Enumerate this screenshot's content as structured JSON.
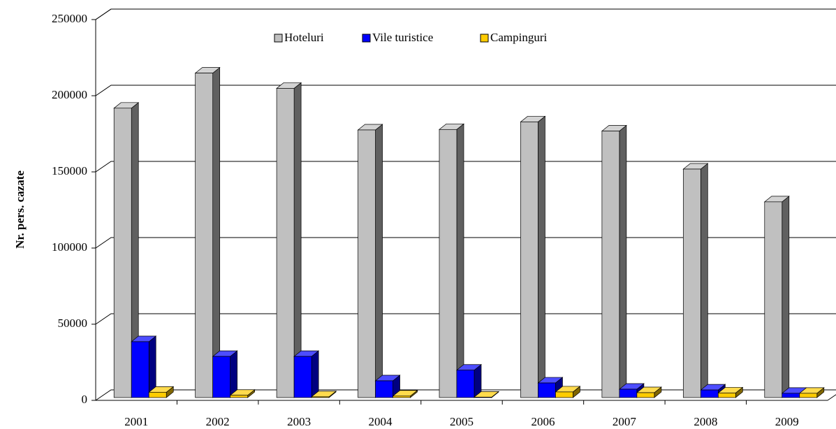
{
  "chart_data": {
    "type": "bar3d",
    "y_label": "Nr. pers. cazate",
    "categories": [
      "2001",
      "2002",
      "2003",
      "2004",
      "2005",
      "2006",
      "2007",
      "2008",
      "2009"
    ],
    "series": [
      {
        "name": "Hoteluri",
        "color": "#c0c0c0",
        "values": [
          190000,
          213000,
          203000,
          175700,
          176000,
          181000,
          175000,
          150000,
          128500
        ]
      },
      {
        "name": "Vile turistice",
        "color": "#0000ff",
        "values": [
          36700,
          27000,
          27000,
          11000,
          18000,
          9600,
          5500,
          5000,
          2800
        ]
      },
      {
        "name": "Campinguri",
        "color": "#ffcc00",
        "values": [
          3500,
          1500,
          500,
          1000,
          300,
          3700,
          3200,
          3000,
          2800
        ]
      }
    ],
    "ylim": [
      0,
      250000
    ],
    "yticks": [
      0,
      50000,
      100000,
      150000,
      200000,
      250000
    ],
    "grid": true
  }
}
